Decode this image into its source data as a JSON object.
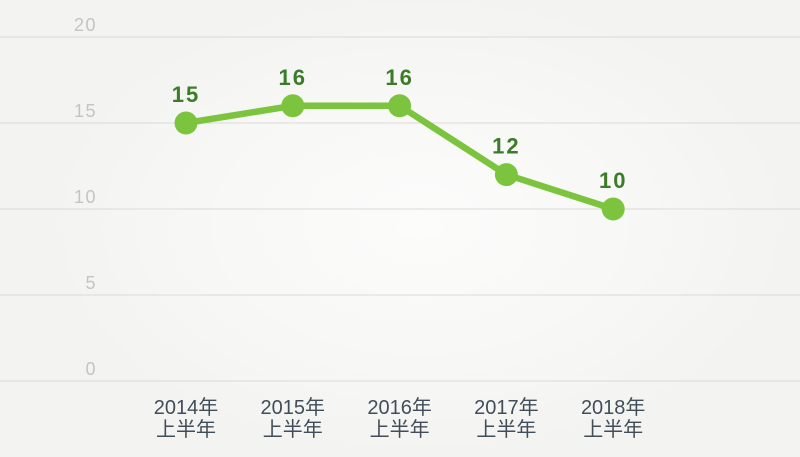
{
  "chart_data": {
    "type": "line",
    "title": "",
    "xlabel": "",
    "ylabel": "",
    "categories": [
      {
        "line1": "2014年",
        "line2": "上半年"
      },
      {
        "line1": "2015年",
        "line2": "上半年"
      },
      {
        "line1": "2016年",
        "line2": "上半年"
      },
      {
        "line1": "2017年",
        "line2": "上半年"
      },
      {
        "line1": "2018年",
        "line2": "上半年"
      }
    ],
    "series": [
      {
        "name": "values",
        "values": [
          15,
          16,
          16,
          12,
          10
        ]
      }
    ],
    "data_labels": [
      "15",
      "16",
      "16",
      "12",
      "10"
    ],
    "yticks": [
      20,
      15,
      10,
      5,
      0
    ],
    "ylim": [
      0,
      20
    ],
    "grid": true,
    "legend": "none",
    "colors": {
      "line": "#7cc43e",
      "marker": "#7cc43e",
      "value_label": "#3b7c28",
      "ytick_label": "#c5c4c2",
      "category_label": "#414e5a",
      "gridline": "#dbdad8",
      "background": "#f3f3f1"
    }
  }
}
